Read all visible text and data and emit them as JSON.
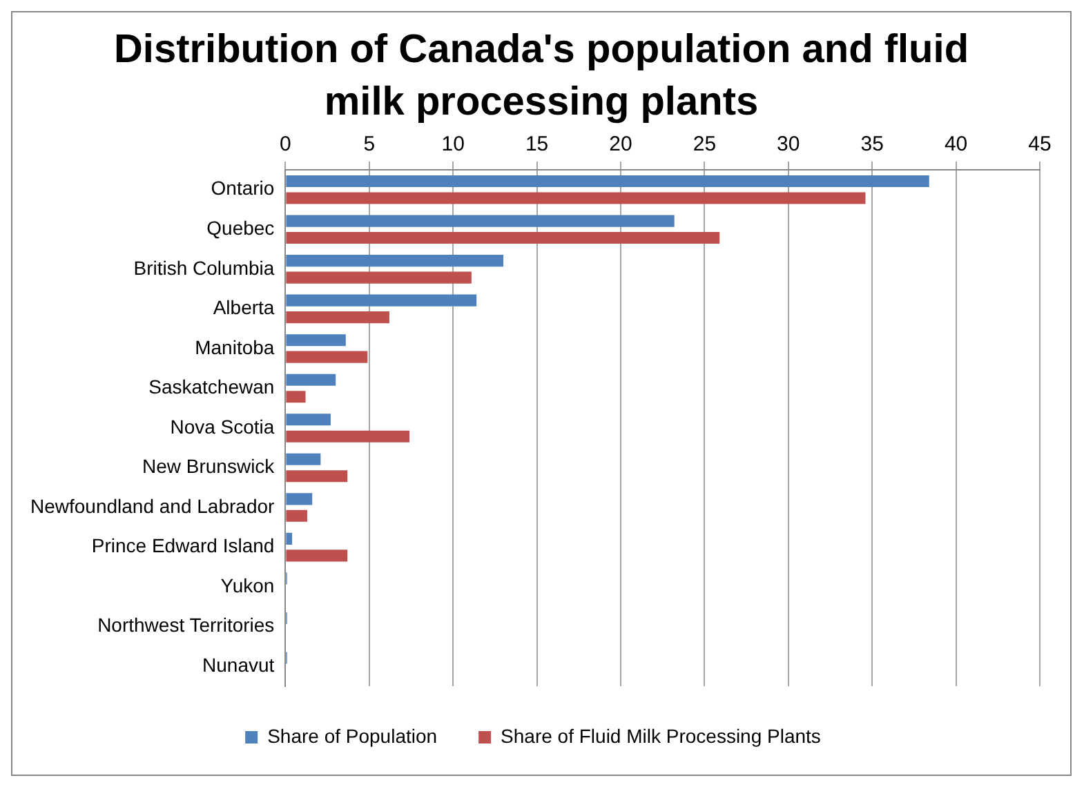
{
  "chart_data": {
    "type": "bar",
    "orientation": "horizontal",
    "title": "Distribution of Canada's population and fluid milk processing plants",
    "categories": [
      "Ontario",
      "Quebec",
      "British Columbia",
      "Alberta",
      "Manitoba",
      "Saskatchewan",
      "Nova Scotia",
      "New Brunswick",
      "Newfoundland and Labrador",
      "Prince Edward Island",
      "Yukon",
      "Northwest Territories",
      "Nunavut"
    ],
    "series": [
      {
        "name": "Share of Population",
        "color": "#4f81bd",
        "values": [
          38.4,
          23.2,
          13.0,
          11.4,
          3.6,
          3.0,
          2.7,
          2.1,
          1.6,
          0.4,
          0.1,
          0.1,
          0.1
        ]
      },
      {
        "name": "Share of Fluid Milk Processing Plants",
        "color": "#c0504d",
        "values": [
          34.6,
          25.9,
          11.1,
          6.2,
          4.9,
          1.2,
          7.4,
          3.7,
          1.3,
          3.7,
          0,
          0,
          0
        ]
      }
    ],
    "xlim": [
      0,
      45
    ],
    "xticks": [
      0,
      5,
      10,
      15,
      20,
      25,
      30,
      35,
      40,
      45
    ],
    "grid": "x",
    "legend": "bottom"
  }
}
